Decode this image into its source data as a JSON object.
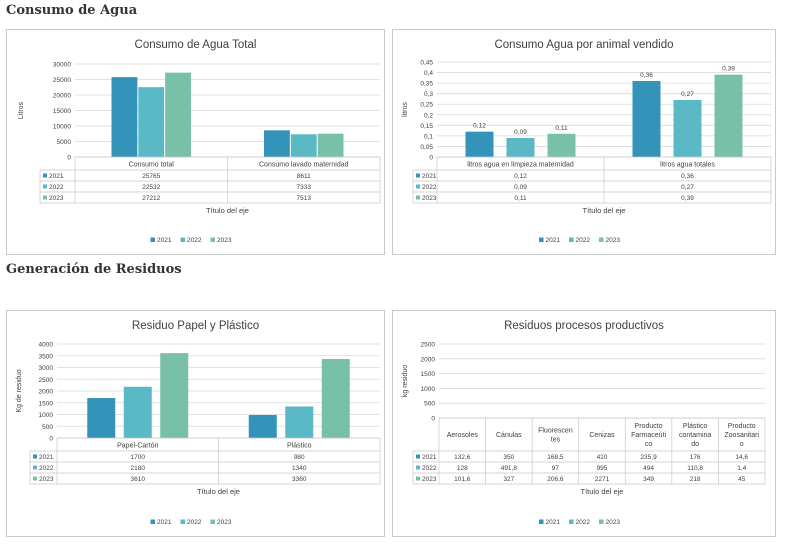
{
  "sections": {
    "water": "Consumo de Agua",
    "waste": "Generación de Residuos"
  },
  "colors": {
    "2021": "#3393b9",
    "2022": "#5ab9c5",
    "2023": "#78c0a8"
  },
  "chart_data": [
    {
      "id": "agua-total",
      "type": "bar",
      "title": "Consumo de Agua Total",
      "ylabel": "Litros",
      "xlabel": "Título del eje",
      "ylim": [
        0,
        30000
      ],
      "yticks": [
        0,
        5000,
        10000,
        15000,
        20000,
        25000,
        30000
      ],
      "ytick_labels": [
        "0",
        "5000",
        "10000",
        "15000",
        "20000",
        "25000",
        "30000"
      ],
      "categories": [
        "Consumo total",
        "Consumo lavado maternidad"
      ],
      "series": [
        {
          "name": "2021",
          "values": [
            25765,
            8611
          ],
          "labels": [
            "25765",
            "8611"
          ]
        },
        {
          "name": "2022",
          "values": [
            22532,
            7333
          ],
          "labels": [
            "22532",
            "7333"
          ]
        },
        {
          "name": "2023",
          "values": [
            27212,
            7513
          ],
          "labels": [
            "27212",
            "7513"
          ]
        }
      ],
      "legend": [
        "2021",
        "2022",
        "2023"
      ],
      "data_labels": false
    },
    {
      "id": "agua-animal",
      "type": "bar",
      "title": "Consumo Agua por animal vendido",
      "ylabel": "litros",
      "xlabel": "Título del eje",
      "ylim": [
        0,
        0.45
      ],
      "yticks": [
        0,
        0.05,
        0.1,
        0.15,
        0.2,
        0.25,
        0.3,
        0.35,
        0.4,
        0.45
      ],
      "ytick_labels": [
        "0",
        "0,05",
        "0,1",
        "0,15",
        "0,2",
        "0,25",
        "0,3",
        "0,35",
        "0,4",
        "0,45"
      ],
      "categories": [
        "litros agua en limpieza maternidad",
        "litros agua totales"
      ],
      "series": [
        {
          "name": "2021",
          "values": [
            0.12,
            0.36
          ],
          "labels": [
            "0,12",
            "0,36"
          ]
        },
        {
          "name": "2022",
          "values": [
            0.09,
            0.27
          ],
          "labels": [
            "0,09",
            "0,27"
          ]
        },
        {
          "name": "2023",
          "values": [
            0.11,
            0.39
          ],
          "labels": [
            "0,11",
            "0,39"
          ]
        }
      ],
      "legend": [
        "2021",
        "2022",
        "2023"
      ],
      "data_labels": true
    },
    {
      "id": "residuo-papel",
      "type": "bar",
      "title": "Residuo Papel y Plástico",
      "ylabel": "Kg de residuo",
      "xlabel": "Título del eje",
      "ylim": [
        0,
        4000
      ],
      "yticks": [
        0,
        500,
        1000,
        1500,
        2000,
        2500,
        3000,
        3500,
        4000
      ],
      "ytick_labels": [
        "0",
        "500",
        "1000",
        "1500",
        "2000",
        "2500",
        "3000",
        "3500",
        "4000"
      ],
      "categories": [
        "Papel-Cartón",
        "Plástico"
      ],
      "series": [
        {
          "name": "2021",
          "values": [
            1700,
            980
          ],
          "labels": [
            "1700",
            "980"
          ]
        },
        {
          "name": "2022",
          "values": [
            2180,
            1340
          ],
          "labels": [
            "2180",
            "1340"
          ]
        },
        {
          "name": "2023",
          "values": [
            3610,
            3360
          ],
          "labels": [
            "3610",
            "3360"
          ]
        }
      ],
      "legend": [
        "2021",
        "2022",
        "2023"
      ],
      "data_labels": false
    },
    {
      "id": "residuo-procesos",
      "type": "bar",
      "title": "Residuos procesos productivos",
      "ylabel": "kg residuo",
      "xlabel": "Título del eje",
      "ylim": [
        0,
        2500
      ],
      "yticks": [
        0,
        500,
        1000,
        1500,
        2000,
        2500
      ],
      "ytick_labels": [
        "0",
        "500",
        "1000",
        "1500",
        "2000",
        "2500"
      ],
      "categories": [
        "Aerosoles",
        "Cánulas",
        "Fluorescentes",
        "Cenizas",
        "Producto Farmaceútico",
        "Plástico contaminado",
        "Producto Zoosanitario"
      ],
      "category_lines": [
        [
          "Aerosoles"
        ],
        [
          "Cánulas"
        ],
        [
          "Fluorescen",
          "tes"
        ],
        [
          "Cenizas"
        ],
        [
          "Producto",
          "Farmaceúti",
          "co"
        ],
        [
          "Plástico",
          "contamina",
          "do"
        ],
        [
          "Producto",
          "Zoosanitari",
          "o"
        ]
      ],
      "series": [
        {
          "name": "2021",
          "values": [
            132.6,
            350,
            168.5,
            410,
            235.9,
            176,
            14.6
          ],
          "labels": [
            "132,6",
            "350",
            "168,5",
            "410",
            "235,9",
            "176",
            "14,6"
          ]
        },
        {
          "name": "2022",
          "values": [
            128,
            491.8,
            97,
            995,
            494,
            110.8,
            1.4
          ],
          "labels": [
            "128",
            "491,8",
            "97",
            "995",
            "494",
            "110,8",
            "1,4"
          ]
        },
        {
          "name": "2023",
          "values": [
            101.6,
            327,
            206.6,
            2271,
            349,
            218,
            45
          ],
          "labels": [
            "101,6",
            "327",
            "206,6",
            "2271",
            "349",
            "218",
            "45"
          ]
        }
      ],
      "legend": [
        "2021",
        "2022",
        "2023"
      ],
      "data_labels": false
    }
  ]
}
